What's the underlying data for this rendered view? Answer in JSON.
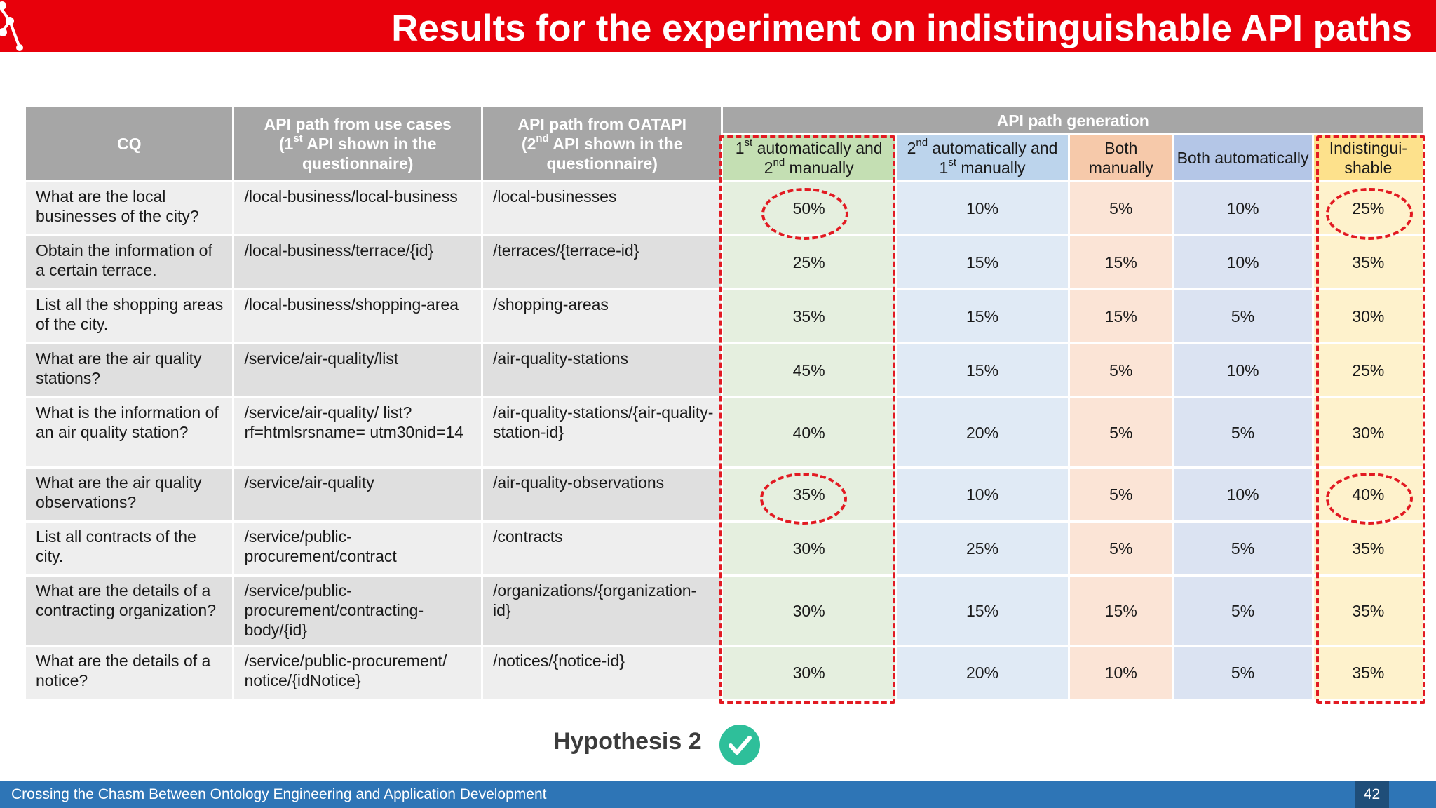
{
  "slide": {
    "title": "Results for the experiment on indistinguishable API paths",
    "footer_text": "Crossing the Chasm Between Ontology Engineering and Application Development",
    "page_number": "42",
    "hypothesis_label": "Hypothesis 2",
    "hypothesis_icon": "check-circle-icon",
    "accent_colors": {
      "header": "#e8000b",
      "footer": "#2e75b6",
      "highlight": "#e21a22",
      "check": "#2ebf9a"
    }
  },
  "table": {
    "headers": {
      "cq": "CQ",
      "use_case_main": "API path from use cases",
      "use_case_sub_pre": "(1",
      "use_case_sup": "st",
      "use_case_sub_post": " API shown in the questionnaire)",
      "oatapi_main": "API path from OATAPI",
      "oatapi_sub_pre": "(2",
      "oatapi_sup": "nd",
      "oatapi_sub_post": " API shown in the questionnaire)",
      "generation": "API path generation",
      "col1_a": "1",
      "col1_sup_a": "st",
      "col1_b": " automatically and 2",
      "col1_sup_b": "nd",
      "col1_c": " manually",
      "col2_a": "2",
      "col2_sup_a": "nd",
      "col2_b": " automatically and 1",
      "col2_sup_b": "st",
      "col2_c": " manually",
      "col3": "Both manually",
      "col4": "Both automatically",
      "col5": "Indistingui-shable"
    },
    "rows": [
      {
        "cq": "What are the local businesses of the city?",
        "use_case": "/local-business/local-business",
        "oatapi": "/local-businesses",
        "auto1_manual2": "50%",
        "auto2_manual1": "10%",
        "both_manual": "5%",
        "both_auto": "10%",
        "indist": "25%"
      },
      {
        "cq": "Obtain the information of a certain terrace.",
        "use_case": "/local-business/terrace/{id}",
        "oatapi": "/terraces/{terrace-id}",
        "auto1_manual2": "25%",
        "auto2_manual1": "15%",
        "both_manual": "15%",
        "both_auto": "10%",
        "indist": "35%"
      },
      {
        "cq": "List all the shopping areas of the city.",
        "use_case": "/local-business/shopping-area",
        "oatapi": "/shopping-areas",
        "auto1_manual2": "35%",
        "auto2_manual1": "15%",
        "both_manual": "15%",
        "both_auto": "5%",
        "indist": "30%"
      },
      {
        "cq": "What are the air quality stations?",
        "use_case": "/service/air-quality/list",
        "oatapi": "/air-quality-stations",
        "auto1_manual2": "45%",
        "auto2_manual1": "15%",
        "both_manual": "5%",
        "both_auto": "10%",
        "indist": "25%"
      },
      {
        "cq": "What is the information of an air quality station?",
        "use_case": "/service/air-quality/ list?rf=htmlsrsname= utm30nid=14",
        "oatapi": "/air-quality-stations/{air-quality-station-id}",
        "auto1_manual2": "40%",
        "auto2_manual1": "20%",
        "both_manual": "5%",
        "both_auto": "5%",
        "indist": "30%"
      },
      {
        "cq": "What are the air quality observations?",
        "use_case": "/service/air-quality",
        "oatapi": "/air-quality-observations",
        "auto1_manual2": "35%",
        "auto2_manual1": "10%",
        "both_manual": "5%",
        "both_auto": "10%",
        "indist": "40%"
      },
      {
        "cq": "List all contracts of the city.",
        "use_case": "/service/public-procurement/contract",
        "oatapi": "/contracts",
        "auto1_manual2": "30%",
        "auto2_manual1": "25%",
        "both_manual": "5%",
        "both_auto": "5%",
        "indist": "35%"
      },
      {
        "cq": "What are the details of a contracting organization?",
        "use_case": "/service/public-procurement/contracting-body/{id}",
        "oatapi": "/organizations/{organization-id}",
        "auto1_manual2": "30%",
        "auto2_manual1": "15%",
        "both_manual": "15%",
        "both_auto": "5%",
        "indist": "35%"
      },
      {
        "cq": "What are the details of a notice?",
        "use_case": "/service/public-procurement/ notice/{idNotice}",
        "oatapi": "/notices/{notice-id}",
        "auto1_manual2": "30%",
        "auto2_manual1": "20%",
        "both_manual": "10%",
        "both_auto": "5%",
        "indist": "35%"
      }
    ]
  }
}
